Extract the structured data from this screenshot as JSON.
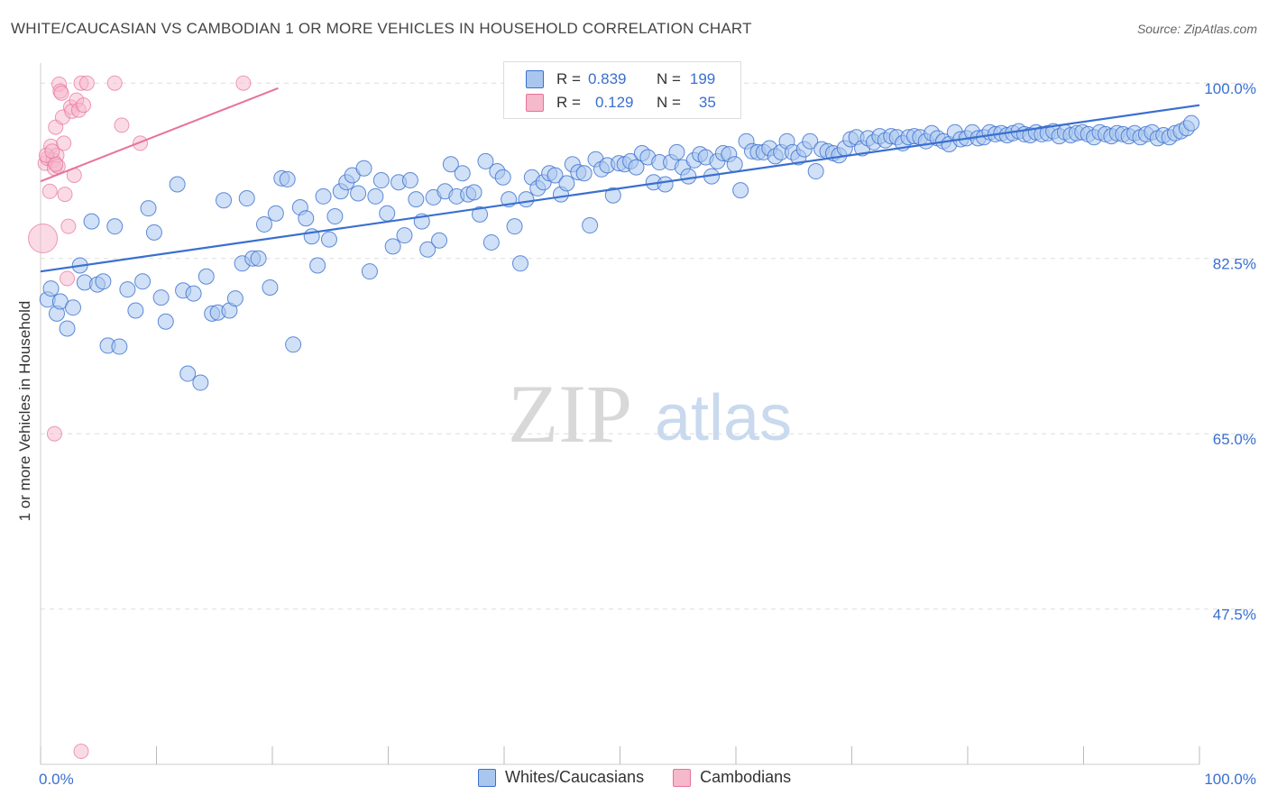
{
  "title": "WHITE/CAUCASIAN VS CAMBODIAN 1 OR MORE VEHICLES IN HOUSEHOLD CORRELATION CHART",
  "source": "Source: ZipAtlas.com",
  "watermark": {
    "zip": "ZIP",
    "atlas": "atlas"
  },
  "colors": {
    "blue": "#3a6fd0",
    "blue_fill": "#a9c6ef",
    "pink": "#e8719a",
    "pink_fill": "#f6b8cb"
  },
  "legend": {
    "rows": [
      {
        "r_label": "R =",
        "r_value": "0.839",
        "n_label": "N =",
        "n_value": "199"
      },
      {
        "r_label": "R =",
        "r_value": "0.129",
        "n_label": "N =",
        "n_value": "35"
      }
    ]
  },
  "bottom_legend": {
    "series1": "Whites/Caucasians",
    "series2": "Cambodians"
  },
  "chart_data": {
    "type": "scatter",
    "title": "WHITE/CAUCASIAN VS CAMBODIAN 1 OR MORE VEHICLES IN HOUSEHOLD CORRELATION CHART",
    "xlabel": "",
    "ylabel": "1 or more Vehicles in Household",
    "x_tick_labels": [
      "0.0%",
      "100.0%"
    ],
    "y_tick_labels": [
      "100.0%",
      "82.5%",
      "65.0%",
      "47.5%"
    ],
    "y_ticks": [
      100.0,
      82.5,
      65.0,
      47.5
    ],
    "xlim": [
      0,
      100
    ],
    "ylim": [
      32,
      102
    ],
    "grid": true,
    "legend_position": "top-center",
    "series": [
      {
        "name": "Whites/Caucasians",
        "R": 0.839,
        "N": 199,
        "trend": {
          "x": [
            0,
            100
          ],
          "y": [
            81.2,
            97.8
          ]
        },
        "points": [
          [
            0.6,
            78.4
          ],
          [
            0.9,
            79.5
          ],
          [
            1.4,
            77.0
          ],
          [
            1.7,
            78.2
          ],
          [
            2.3,
            75.5
          ],
          [
            2.8,
            77.6
          ],
          [
            3.4,
            81.8
          ],
          [
            3.8,
            80.1
          ],
          [
            4.4,
            86.2
          ],
          [
            4.9,
            79.9
          ],
          [
            5.4,
            80.2
          ],
          [
            5.8,
            73.8
          ],
          [
            6.4,
            85.7
          ],
          [
            6.8,
            73.7
          ],
          [
            7.5,
            79.4
          ],
          [
            8.2,
            77.3
          ],
          [
            8.8,
            80.2
          ],
          [
            9.3,
            87.5
          ],
          [
            9.8,
            85.1
          ],
          [
            10.4,
            78.6
          ],
          [
            10.8,
            76.2
          ],
          [
            11.8,
            89.9
          ],
          [
            12.3,
            79.3
          ],
          [
            12.7,
            71.0
          ],
          [
            13.2,
            79.0
          ],
          [
            13.8,
            70.1
          ],
          [
            14.3,
            80.7
          ],
          [
            14.8,
            77.0
          ],
          [
            15.3,
            77.1
          ],
          [
            15.8,
            88.3
          ],
          [
            16.3,
            77.3
          ],
          [
            16.8,
            78.5
          ],
          [
            17.4,
            82.0
          ],
          [
            17.8,
            88.5
          ],
          [
            18.3,
            82.5
          ],
          [
            18.8,
            82.5
          ],
          [
            19.3,
            85.9
          ],
          [
            19.8,
            79.6
          ],
          [
            20.3,
            87.0
          ],
          [
            20.8,
            90.5
          ],
          [
            21.3,
            90.4
          ],
          [
            21.8,
            73.9
          ],
          [
            22.4,
            87.6
          ],
          [
            22.9,
            86.5
          ],
          [
            23.4,
            84.7
          ],
          [
            23.9,
            81.8
          ],
          [
            24.4,
            88.7
          ],
          [
            24.9,
            84.4
          ],
          [
            25.4,
            86.7
          ],
          [
            25.9,
            89.2
          ],
          [
            26.4,
            90.1
          ],
          [
            26.9,
            90.8
          ],
          [
            27.4,
            89.0
          ],
          [
            27.9,
            91.5
          ],
          [
            28.4,
            81.2
          ],
          [
            28.9,
            88.7
          ],
          [
            29.4,
            90.3
          ],
          [
            29.9,
            87.0
          ],
          [
            30.4,
            83.7
          ],
          [
            30.9,
            90.1
          ],
          [
            31.4,
            84.8
          ],
          [
            31.9,
            90.3
          ],
          [
            32.4,
            88.4
          ],
          [
            32.9,
            86.2
          ],
          [
            33.4,
            83.4
          ],
          [
            33.9,
            88.6
          ],
          [
            34.4,
            84.3
          ],
          [
            34.9,
            89.2
          ],
          [
            35.4,
            91.9
          ],
          [
            35.9,
            88.7
          ],
          [
            36.4,
            91.0
          ],
          [
            36.9,
            88.9
          ],
          [
            37.4,
            89.1
          ],
          [
            37.9,
            86.9
          ],
          [
            38.4,
            92.2
          ],
          [
            38.9,
            84.1
          ],
          [
            39.4,
            91.2
          ],
          [
            39.9,
            90.6
          ],
          [
            40.4,
            88.4
          ],
          [
            40.9,
            85.7
          ],
          [
            41.4,
            82.0
          ],
          [
            41.9,
            88.4
          ],
          [
            42.4,
            90.6
          ],
          [
            42.9,
            89.5
          ],
          [
            43.4,
            90.1
          ],
          [
            43.9,
            91.0
          ],
          [
            44.4,
            90.8
          ],
          [
            44.9,
            88.9
          ],
          [
            45.4,
            90.0
          ],
          [
            45.9,
            91.9
          ],
          [
            46.4,
            91.1
          ],
          [
            46.9,
            91.0
          ],
          [
            47.4,
            85.8
          ],
          [
            47.9,
            92.4
          ],
          [
            48.4,
            91.4
          ],
          [
            48.9,
            91.8
          ],
          [
            49.4,
            88.8
          ],
          [
            49.9,
            92.0
          ],
          [
            50.4,
            91.9
          ],
          [
            50.9,
            92.2
          ],
          [
            51.4,
            91.6
          ],
          [
            51.9,
            93.0
          ],
          [
            52.4,
            92.6
          ],
          [
            52.9,
            90.1
          ],
          [
            53.4,
            92.1
          ],
          [
            53.9,
            89.9
          ],
          [
            54.4,
            92.1
          ],
          [
            54.9,
            93.1
          ],
          [
            55.4,
            91.6
          ],
          [
            55.9,
            90.7
          ],
          [
            56.4,
            92.3
          ],
          [
            56.9,
            92.9
          ],
          [
            57.4,
            92.6
          ],
          [
            57.9,
            90.7
          ],
          [
            58.4,
            92.2
          ],
          [
            58.9,
            93.0
          ],
          [
            59.4,
            92.9
          ],
          [
            59.9,
            91.9
          ],
          [
            60.4,
            89.3
          ],
          [
            60.9,
            94.2
          ],
          [
            61.4,
            93.2
          ],
          [
            61.9,
            93.1
          ],
          [
            62.4,
            93.1
          ],
          [
            62.9,
            93.5
          ],
          [
            63.4,
            92.7
          ],
          [
            63.9,
            93.1
          ],
          [
            64.4,
            94.2
          ],
          [
            64.9,
            93.1
          ],
          [
            65.4,
            92.6
          ],
          [
            65.9,
            93.4
          ],
          [
            66.4,
            94.2
          ],
          [
            66.9,
            91.2
          ],
          [
            67.4,
            93.4
          ],
          [
            67.9,
            93.2
          ],
          [
            68.4,
            93.0
          ],
          [
            68.9,
            92.8
          ],
          [
            69.4,
            93.5
          ],
          [
            69.9,
            94.4
          ],
          [
            70.4,
            94.6
          ],
          [
            70.9,
            93.5
          ],
          [
            71.4,
            94.5
          ],
          [
            71.9,
            94.1
          ],
          [
            72.4,
            94.7
          ],
          [
            72.9,
            94.3
          ],
          [
            73.4,
            94.7
          ],
          [
            73.9,
            94.6
          ],
          [
            74.4,
            94.0
          ],
          [
            74.9,
            94.6
          ],
          [
            75.4,
            94.7
          ],
          [
            75.9,
            94.6
          ],
          [
            76.4,
            94.2
          ],
          [
            76.9,
            95.0
          ],
          [
            77.4,
            94.5
          ],
          [
            77.9,
            94.2
          ],
          [
            78.4,
            93.9
          ],
          [
            78.9,
            95.1
          ],
          [
            79.4,
            94.4
          ],
          [
            79.9,
            94.5
          ],
          [
            80.4,
            95.1
          ],
          [
            80.9,
            94.5
          ],
          [
            81.4,
            94.6
          ],
          [
            81.9,
            95.1
          ],
          [
            82.4,
            94.9
          ],
          [
            82.9,
            95.0
          ],
          [
            83.4,
            94.8
          ],
          [
            83.9,
            95.0
          ],
          [
            84.4,
            95.2
          ],
          [
            84.9,
            94.9
          ],
          [
            85.4,
            94.8
          ],
          [
            85.9,
            95.1
          ],
          [
            86.4,
            94.9
          ],
          [
            86.9,
            95.0
          ],
          [
            87.4,
            95.2
          ],
          [
            87.9,
            94.7
          ],
          [
            88.4,
            95.1
          ],
          [
            88.9,
            94.8
          ],
          [
            89.4,
            95.0
          ],
          [
            89.9,
            95.1
          ],
          [
            90.4,
            94.9
          ],
          [
            90.9,
            94.6
          ],
          [
            91.4,
            95.1
          ],
          [
            91.9,
            94.9
          ],
          [
            92.4,
            94.7
          ],
          [
            92.9,
            95.0
          ],
          [
            93.4,
            94.9
          ],
          [
            93.9,
            94.7
          ],
          [
            94.4,
            95.0
          ],
          [
            94.9,
            94.6
          ],
          [
            95.4,
            94.9
          ],
          [
            95.9,
            95.1
          ],
          [
            96.4,
            94.5
          ],
          [
            96.9,
            94.8
          ],
          [
            97.4,
            94.6
          ],
          [
            97.9,
            95.0
          ],
          [
            98.4,
            95.2
          ],
          [
            98.9,
            95.5
          ],
          [
            99.3,
            96.0
          ]
        ]
      },
      {
        "name": "Cambodians",
        "R": 0.129,
        "N": 35,
        "trend": {
          "x": [
            0,
            20.5
          ],
          "y": [
            90.2,
            99.5
          ]
        },
        "points": [
          [
            0.2,
            84.5
          ],
          [
            0.4,
            92.0
          ],
          [
            0.6,
            92.5
          ],
          [
            0.8,
            89.2
          ],
          [
            0.9,
            93.7
          ],
          [
            1.1,
            92.3
          ],
          [
            1.2,
            91.5
          ],
          [
            1.3,
            95.6
          ],
          [
            1.4,
            92.8
          ],
          [
            1.5,
            91.7
          ],
          [
            1.6,
            99.9
          ],
          [
            1.7,
            99.2
          ],
          [
            1.8,
            99.0
          ],
          [
            1.9,
            96.6
          ],
          [
            2.0,
            94.0
          ],
          [
            2.1,
            88.9
          ],
          [
            2.3,
            80.5
          ],
          [
            2.4,
            85.7
          ],
          [
            2.6,
            97.6
          ],
          [
            2.7,
            97.2
          ],
          [
            2.9,
            90.8
          ],
          [
            3.1,
            98.3
          ],
          [
            3.3,
            97.3
          ],
          [
            3.5,
            100.0
          ],
          [
            3.7,
            97.8
          ],
          [
            4.0,
            100.0
          ],
          [
            6.4,
            100.0
          ],
          [
            7.0,
            95.8
          ],
          [
            8.6,
            94.0
          ],
          [
            17.5,
            100.0
          ],
          [
            1.2,
            65.0
          ],
          [
            3.5,
            33.3
          ],
          [
            0.5,
            92.8
          ],
          [
            1.0,
            93.2
          ],
          [
            1.3,
            91.9
          ]
        ]
      }
    ]
  }
}
